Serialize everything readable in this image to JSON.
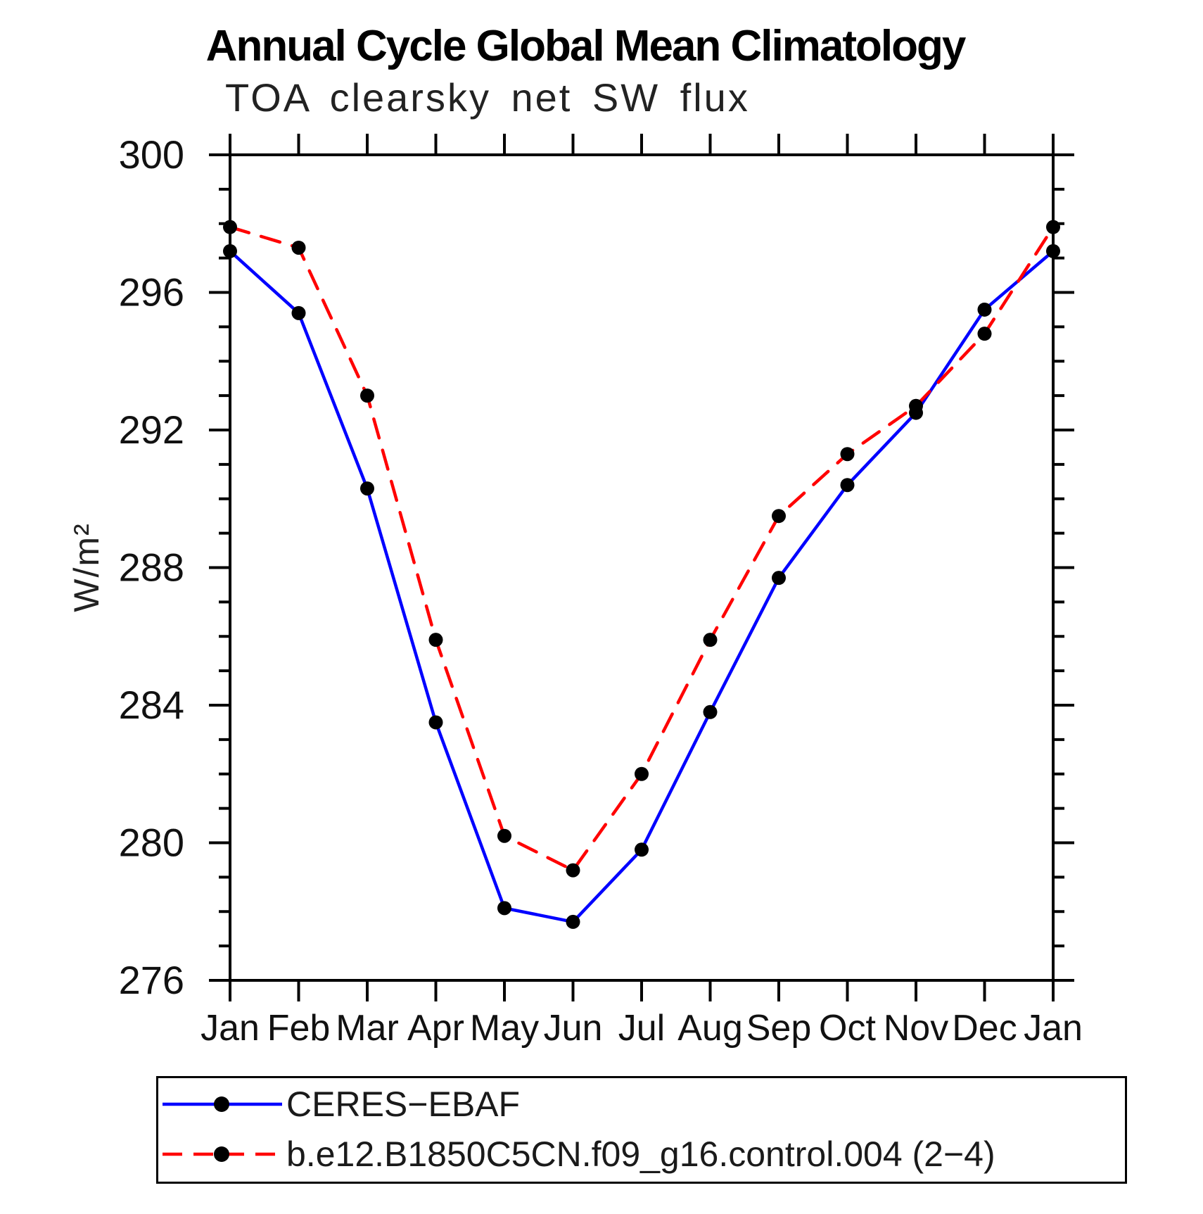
{
  "title": "Annual Cycle Global Mean Climatology",
  "subtitle": "TOA clearsky net SW flux",
  "chart_data": {
    "type": "line",
    "title": "Annual Cycle Global Mean Climatology",
    "subtitle": "TOA clearsky net SW flux",
    "ylabel": "W/m²",
    "categories": [
      "Jan",
      "Feb",
      "Mar",
      "Apr",
      "May",
      "Jun",
      "Jul",
      "Aug",
      "Sep",
      "Oct",
      "Nov",
      "Dec",
      "Jan"
    ],
    "ylim": [
      276,
      300
    ],
    "ytick_labels": [
      "300",
      "296",
      "292",
      "288",
      "284",
      "280",
      "276"
    ],
    "ytick_major_interval": 4,
    "ytick_minor_interval": 1,
    "grid": false,
    "legend_position": "bottom-left-box",
    "axis_color": "#000000",
    "marker_color": "#000000",
    "series": [
      {
        "name": "CERES−EBAF",
        "color": "#0000ff",
        "style": "solid",
        "marker": "circle",
        "values": [
          297.2,
          295.4,
          290.3,
          283.5,
          278.1,
          277.7,
          279.8,
          283.8,
          287.7,
          290.4,
          292.5,
          295.5,
          297.2
        ]
      },
      {
        "name": "b.e12.B1850C5CN.f09_g16.control.004 (2−4)",
        "color": "#ff0000",
        "style": "dashed",
        "marker": "circle",
        "values": [
          297.9,
          297.3,
          293.0,
          285.9,
          280.2,
          279.2,
          282.0,
          285.9,
          289.5,
          291.3,
          292.7,
          294.8,
          297.9
        ]
      }
    ]
  }
}
